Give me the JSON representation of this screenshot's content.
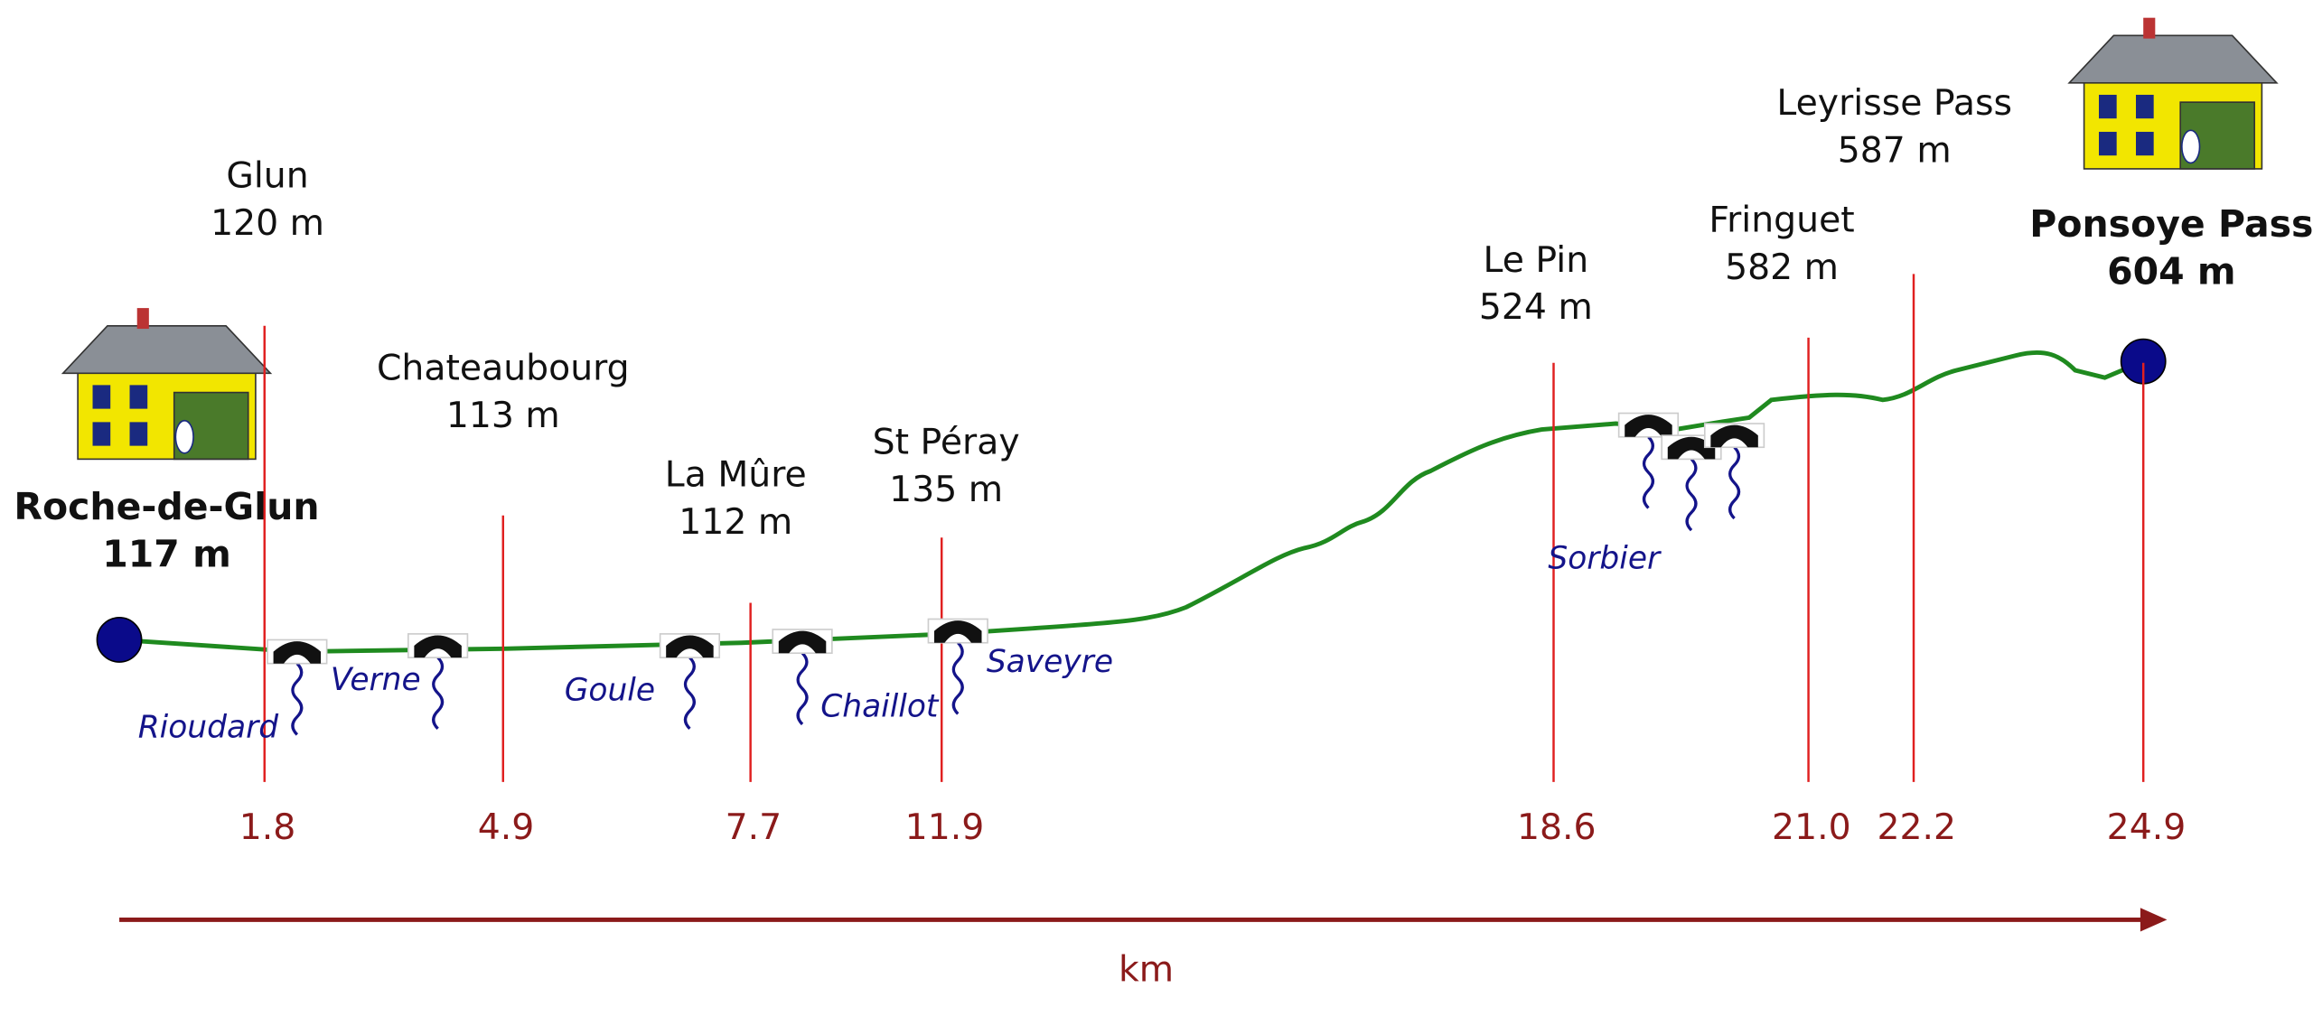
{
  "start": {
    "name": "Roche-de-Glun",
    "elevation": "117 m"
  },
  "waypoints": [
    {
      "name": "Glun",
      "elevation": "120 m",
      "km": "1.8"
    },
    {
      "name": "Chateaubourg",
      "elevation": "113 m",
      "km": "4.9"
    },
    {
      "name": "La Mûre",
      "elevation": "112 m",
      "km": "7.7"
    },
    {
      "name": "St Péray",
      "elevation": "135 m",
      "km": "11.9"
    },
    {
      "name": "Le Pin",
      "elevation": "524 m",
      "km": "18.6"
    },
    {
      "name": "Fringuet",
      "elevation": "582 m",
      "km": "21.0"
    },
    {
      "name": "Leyrisse Pass",
      "elevation": "587 m",
      "km": "22.2"
    },
    {
      "name": "Ponsoye Pass",
      "elevation": "604 m",
      "km": "24.9"
    }
  ],
  "streams": [
    "Rioudard",
    "Verne",
    "Goule",
    "Chaillot",
    "Saveyre",
    "Sorbier"
  ],
  "axis_label": "km"
}
